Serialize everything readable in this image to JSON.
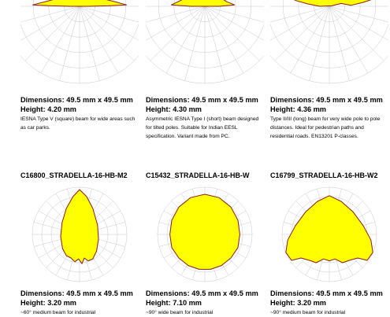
{
  "products": [
    {
      "code": "",
      "dimensions": "Dimensions: 49.5 mm x 49.5 mm",
      "height": "Height: 4.20 mm",
      "description": "IESNA Type V (square) beam for wide areas such as car parks.",
      "beam_shape": "wide-flat"
    },
    {
      "code": "",
      "dimensions": "Dimensions: 49.5 mm x 49.5 mm",
      "height": "Height: 4.30 mm",
      "description": "Asymmetric IESNA Type I (short) beam designed for tilted poles. Suitable for Indian EESL specification. Variant made from PC.",
      "beam_shape": "asymmetric-short"
    },
    {
      "code": "",
      "dimensions": "Dimensions: 49.5 mm x 49.5 mm",
      "height": "Height: 4.36 mm",
      "description": "Type II/III (long) beam for very wide pole to pole distances. Ideal for pedestrian paths and residential roads. EN13201 P-classes.",
      "beam_shape": "wide-long"
    },
    {
      "code": "C16800_STRADELLA-16-HB-M2",
      "dimensions": "Dimensions: 49.5 mm x 49.5 mm",
      "height": "Height: 3.20 mm",
      "description": "~60° medium beam for industrial",
      "beam_shape": "narrow"
    },
    {
      "code": "C15432_STRADELLA-16-HB-W",
      "dimensions": "Dimensions: 49.5 mm x 49.5 mm",
      "height": "Height: 7.10 mm",
      "description": "~90° wide beam for industrial",
      "beam_shape": "round"
    },
    {
      "code": "C16799_STRADELLA-16-HB-W2",
      "dimensions": "Dimensions: 49.5 mm x 49.5 mm",
      "height": "Height: 3.20 mm",
      "description": "~90° medium beam for industrial",
      "beam_shape": "batwing"
    }
  ],
  "colors": {
    "beam_fill": "#ffff00",
    "beam_stroke": "#8b1a1a",
    "grid": "#c8c8c8"
  }
}
